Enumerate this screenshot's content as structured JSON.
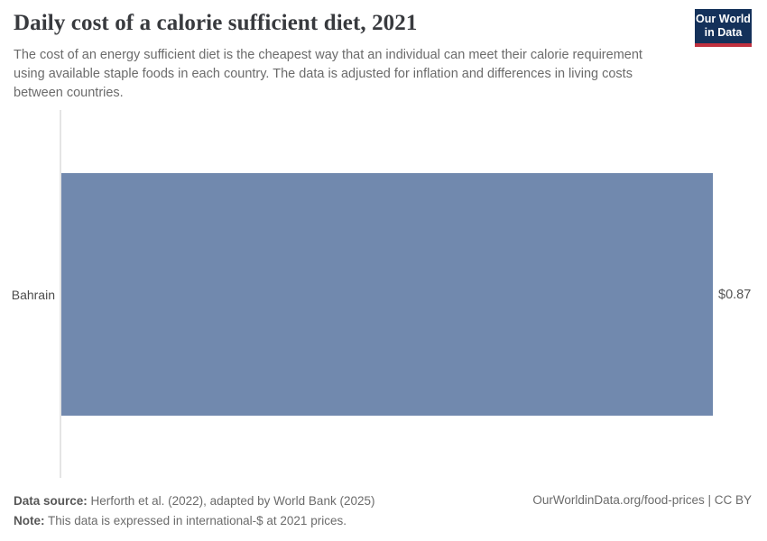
{
  "header": {
    "title": "Daily cost of a calorie sufficient diet, 2021",
    "subtitle": "The cost of an energy sufficient diet is the cheapest way that an individual can meet their calorie requirement using available staple foods in each country. The data is adjusted for inflation and differences in living costs between countries.",
    "logo_line1": "Our World",
    "logo_line2": "in Data"
  },
  "chart_data": {
    "type": "bar",
    "orientation": "horizontal",
    "title": "Daily cost of a calorie sufficient diet, 2021",
    "categories": [
      "Bahrain"
    ],
    "values": [
      0.87
    ],
    "value_labels": [
      "$0.87"
    ],
    "unit": "international-$ per day",
    "xlabel": "",
    "ylabel": "",
    "xlim": [
      0,
      0.87
    ],
    "grid": false,
    "legend": "none"
  },
  "footer": {
    "data_source_label": "Data source:",
    "data_source_text": "Herforth et al. (2022), adapted by World Bank (2025)",
    "note_label": "Note:",
    "note_text": "This data is expressed in international-$ at 2021 prices.",
    "right_text": "OurWorldinData.org/food-prices | CC BY"
  },
  "colors": {
    "bar": "#7189ae",
    "title_text": "#383a3e",
    "body_text": "#6b6b6b",
    "axis_line": "#e4e4e4",
    "logo_bg": "#14315a",
    "logo_accent": "#c0303e"
  }
}
